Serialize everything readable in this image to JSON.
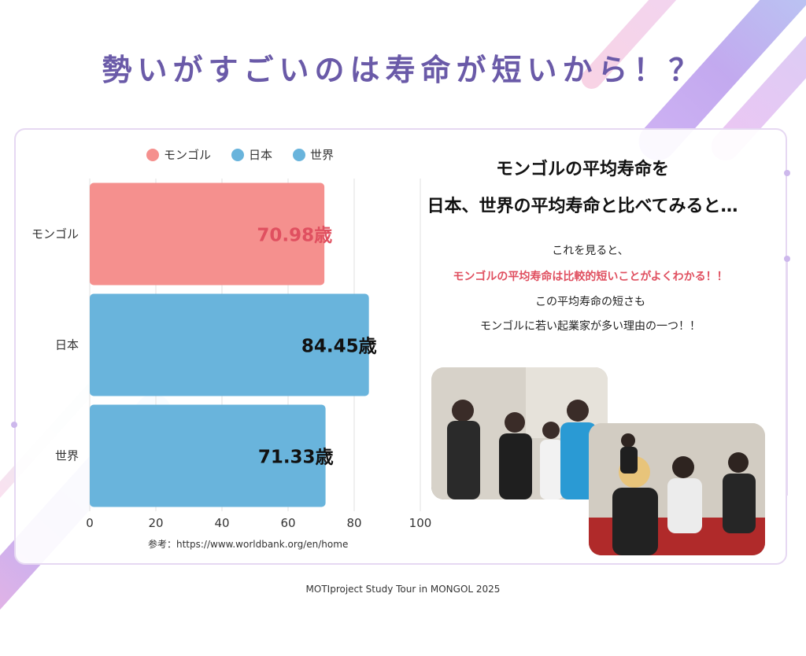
{
  "slide": {
    "title": "勢いがすごいのは寿命が短いから！？",
    "source_note": "参考：https://www.worldbank.org/en/home",
    "footer": "MOTIproject Study Tour  in MONGOL 2025"
  },
  "right": {
    "heading_line1": "モンゴルの平均寿命を",
    "heading_line2": "日本、世界の平均寿命と比べてみると…",
    "text_line1": "これを見ると、",
    "text_line2": "モンゴルの平均寿命は比較的短いことがよくわかる！！",
    "text_line3": "この平均寿命の短さも",
    "text_line4": "モンゴルに若い起業家が多い理由の一つ！！"
  },
  "colors": {
    "title": "#6a5aa8",
    "mongolia": "#f5908e",
    "japan": "#69b4dc",
    "world": "#69b4dc",
    "highlight": "#e05060"
  },
  "chart_data": {
    "type": "bar",
    "orientation": "horizontal",
    "categories": [
      "モンゴル",
      "日本",
      "世界"
    ],
    "series": [
      {
        "name": "モンゴル",
        "values": [
          70.98,
          null,
          null
        ],
        "labels": [
          "70.98歳",
          "",
          ""
        ]
      },
      {
        "name": "日本",
        "values": [
          null,
          84.45,
          null
        ],
        "labels": [
          "",
          "84.45歳",
          ""
        ]
      },
      {
        "name": "世界",
        "values": [
          null,
          null,
          71.33
        ],
        "labels": [
          "",
          "",
          "71.33歳"
        ]
      }
    ],
    "xlim": [
      0,
      100
    ],
    "xticks": [
      0,
      20,
      40,
      60,
      80,
      100
    ],
    "grid": true,
    "legend": "top"
  }
}
